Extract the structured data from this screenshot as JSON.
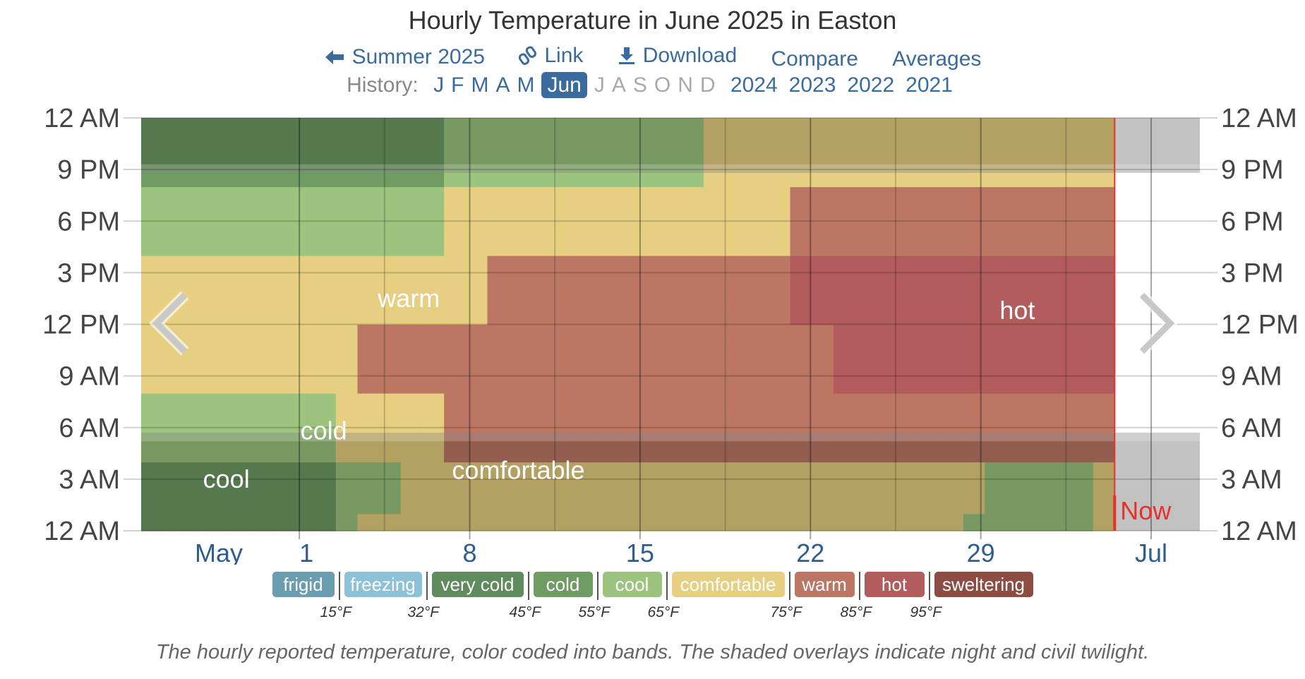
{
  "title": "Hourly Temperature in June 2025 in Easton",
  "nav": {
    "back_label": "Summer 2025",
    "link_label": "Link",
    "download_label": "Download",
    "compare_label": "Compare",
    "averages_label": "Averages"
  },
  "history": {
    "label": "History:",
    "months": [
      "J",
      "F",
      "M",
      "A",
      "M",
      "Jun",
      "J",
      "A",
      "S",
      "O",
      "N",
      "D"
    ],
    "current_index": 5,
    "years": [
      "2024",
      "2023",
      "2022",
      "2021"
    ]
  },
  "chart_data": {
    "type": "heatmap",
    "title": "Hourly Temperature in June 2025 in Easton",
    "x_type": "day",
    "x_start_day": -6.5,
    "x_end_day": 37,
    "y_range_hours": [
      0,
      24
    ],
    "y_ticks": [
      "12 AM",
      "3 AM",
      "6 AM",
      "9 AM",
      "12 PM",
      "3 PM",
      "6 PM",
      "9 PM",
      "12 AM"
    ],
    "x_ticks": [
      {
        "day": -6.5,
        "label": "May"
      },
      {
        "day": 0,
        "label": "1"
      },
      {
        "day": 7,
        "label": "8"
      },
      {
        "day": 14,
        "label": "15"
      },
      {
        "day": 21,
        "label": "22"
      },
      {
        "day": 28,
        "label": "29"
      },
      {
        "day": 35,
        "label": "Jul"
      }
    ],
    "data_end_day": 33.5,
    "now_label": "Now",
    "band_labels": [
      {
        "text": "cool",
        "day": -3,
        "hour": 3
      },
      {
        "text": "cold",
        "day": 1,
        "hour": 5.8
      },
      {
        "text": "warm",
        "day": 4.5,
        "hour": 13.5
      },
      {
        "text": "comfortable",
        "day": 9,
        "hour": 3.5
      },
      {
        "text": "hot",
        "day": 29.5,
        "hour": 12.8
      }
    ],
    "bands": [
      {
        "name": "frigid",
        "color": "#6a9db0"
      },
      {
        "name": "freezing",
        "color": "#8cc2d8"
      },
      {
        "name": "very cold",
        "color": "#5e8c5d"
      },
      {
        "name": "cold",
        "color": "#6e9c63"
      },
      {
        "name": "cool",
        "color": "#9cc47e"
      },
      {
        "name": "comfortable",
        "color": "#e6cf80"
      },
      {
        "name": "warm",
        "color": "#bc7764"
      },
      {
        "name": "hot",
        "color": "#b25c5d"
      },
      {
        "name": "sweltering",
        "color": "#8e4d43"
      }
    ],
    "thresholds": [
      "15°F",
      "32°F",
      "45°F",
      "55°F",
      "65°F",
      "75°F",
      "85°F",
      "95°F"
    ],
    "grid": [
      "333333333455555555555555555555555555554444445",
      "333333333455555555555555555555555555554444445",
      "333333333444555555555555555555555555555444445",
      "333333333444555555555555555555555555555444445",
      "333333333444555555555555555555555555555444445",
      "333333333444555555555555555555555555555444445",
      "333333333444555555555555555555555555555444445",
      "333333333444555555555555555555555555555444445",
      "444444444555556666666666666666666666666666666",
      "444444444555556666666666666666666666666666666",
      "444444444555556666666666666666666666666666666",
      "444444444555556666666666666666666666666666666",
      "444444444555556666666666666666666666666666666",
      "444444444555556666666666666666666666666666666",
      "444444444555556666666666666666666666666666666",
      "444444444555556666666666666666666666666666666",
      "555555555566666666666666666666667777777777777",
      "555555555566666666666666666666667777777777777",
      "555555555566666666666666666666667777777777777",
      "555555555566666666666666666666667777777777777",
      "555555555566666666666666666666667777777777777",
      "555555555566666666666666666666667777777777777",
      "555555555566666666666666666666667777777777777",
      "555555555566666666666666666666667777777777777",
      "555555555555555566666666666666777777777777777",
      "555555555555555566666666666666777777777777777",
      "555555555555555566666666666666777777777777777",
      "555555555555555566666666666666777777777777777",
      "555555555555555566666666666666777777777777777",
      "555555555555555566666666666666777777777777777",
      "555555555555555566666666666666777777777777777",
      "555555555555555566666666666666777777777777777",
      "444444444444445555555555555555666666666666666",
      "444444444444445555555555555555666666666666666",
      "444444444444445555555555555555666666666666666",
      "444444444444445555555555555555666666666666666",
      "444444444444445555555555555555666666666666666",
      "444444444444445555555555555555666666666666666",
      "444444444444445555555555555555666666666666666",
      "444444444444445555555555555555666666666666666",
      "333333333333334444444444445555555555555555555",
      "333333333333334444444444445555555555555555555",
      "333333333333334444444444445555555555555555555",
      "333333333333334444444444445555555555555555555",
      "333333333333334444444444445555555555555555555",
      "333333333333334444444444445555555555555555555",
      "333333333333334444444444445555555555555555555",
      "333333333333334444444444445555555555555555555"
    ],
    "night_ranges_hours": [
      [
        0,
        5.7
      ],
      [
        20.8,
        24
      ]
    ],
    "twilight_ranges_hours": [
      [
        5.2,
        5.7
      ],
      [
        20.8,
        21.3
      ]
    ]
  },
  "legend": {
    "labels": [
      "frigid",
      "freezing",
      "very cold",
      "cold",
      "cool",
      "comfortable",
      "warm",
      "hot",
      "sweltering"
    ],
    "ticks": [
      "15°F",
      "32°F",
      "45°F",
      "55°F",
      "65°F",
      "75°F",
      "85°F",
      "95°F"
    ]
  },
  "caption": "The hourly reported temperature, color coded into bands. The shaded overlays indicate night and civil twilight."
}
